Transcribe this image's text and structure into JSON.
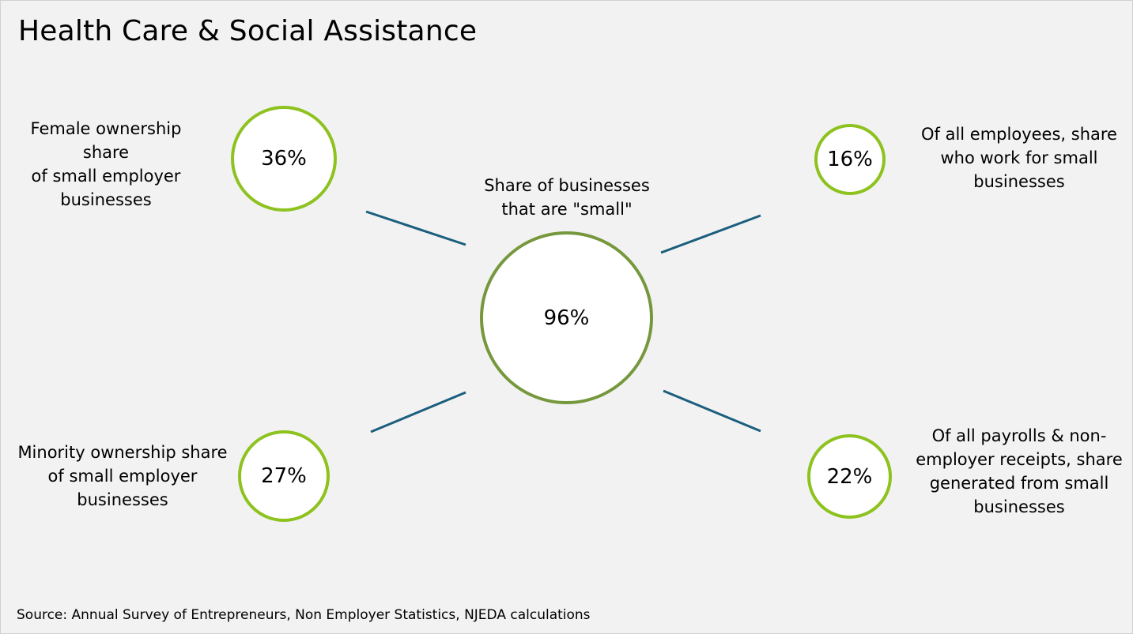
{
  "title": "Health Care & Social Assistance",
  "center": {
    "label": "Share of businesses\nthat are \"small\"",
    "value": "96%"
  },
  "metrics": {
    "female_ownership": {
      "label": "Female ownership\nshare\nof small employer\nbusinesses",
      "value": "36%"
    },
    "employee_share": {
      "label": "Of all employees, share\nwho work for small\nbusinesses",
      "value": "16%"
    },
    "minority_ownership": {
      "label": "Minority ownership share\nof small employer\nbusinesses",
      "value": "27%"
    },
    "payroll_share": {
      "label": "Of all payrolls & non-\nemployer receipts, share\ngenerated from small\nbusinesses",
      "value": "22%"
    }
  },
  "colors": {
    "outer_circle_border": "#8dc21f",
    "center_circle_border": "#76983d",
    "connector": "#1b5e7e",
    "background": "#f2f2f2"
  },
  "source": "Source: Annual Survey of Entrepreneurs, Non Employer Statistics, NJEDA calculations"
}
